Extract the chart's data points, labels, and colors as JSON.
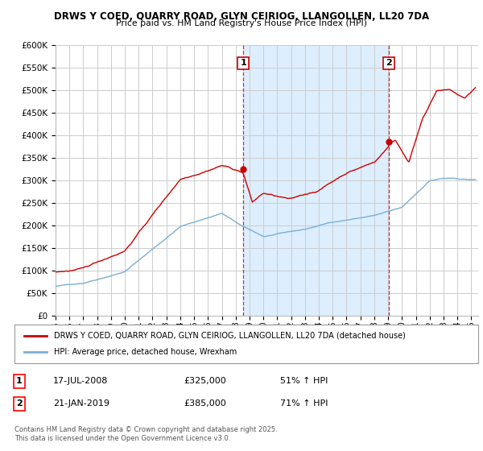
{
  "title1": "DRWS Y COED, QUARRY ROAD, GLYN CEIRIOG, LLANGOLLEN, LL20 7DA",
  "title2": "Price paid vs. HM Land Registry's House Price Index (HPI)",
  "ylim": [
    0,
    600000
  ],
  "yticks": [
    0,
    50000,
    100000,
    150000,
    200000,
    250000,
    300000,
    350000,
    400000,
    450000,
    500000,
    550000,
    600000
  ],
  "xlim_start": 1995.0,
  "xlim_end": 2025.5,
  "sale1_date": 2008.54,
  "sale1_price": 325000,
  "sale1_label": "1",
  "sale2_date": 2019.06,
  "sale2_price": 385000,
  "sale2_label": "2",
  "line_color_red": "#cc0000",
  "line_color_blue": "#7aaed6",
  "shade_color": "#ddeeff",
  "vline_color": "#cc0000",
  "legend_label_red": "DRWS Y COED, QUARRY ROAD, GLYN CEIRIOG, LLANGOLLEN, LL20 7DA (detached house)",
  "legend_label_blue": "HPI: Average price, detached house, Wrexham",
  "table_row1": [
    "1",
    "17-JUL-2008",
    "£325,000",
    "51% ↑ HPI"
  ],
  "table_row2": [
    "2",
    "21-JAN-2019",
    "£385,000",
    "71% ↑ HPI"
  ],
  "footnote": "Contains HM Land Registry data © Crown copyright and database right 2025.\nThis data is licensed under the Open Government Licence v3.0.",
  "bg_color": "#ffffff",
  "plot_bg_color": "#ffffff",
  "grid_color": "#cccccc"
}
